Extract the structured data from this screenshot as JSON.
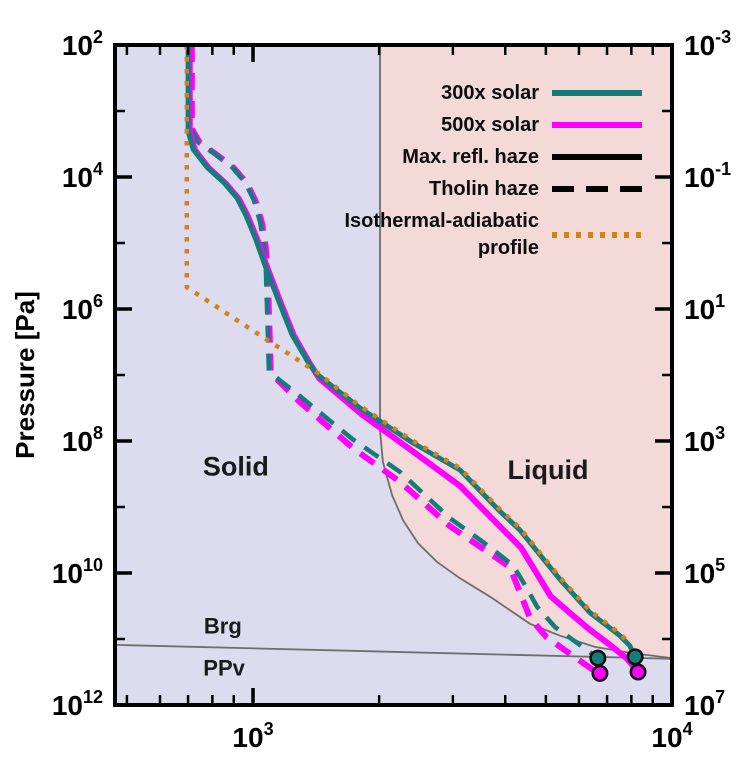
{
  "chart_data": {
    "type": "line",
    "title": "",
    "xlabel": "",
    "ylabel": "Pressure [Pa]",
    "tick_base": "10",
    "x_axis": {
      "scale": "log",
      "range": [
        2.6706,
        4.0
      ],
      "major_ticks": [
        {
          "log": 3.0,
          "exp": "3"
        },
        {
          "log": 4.0,
          "exp": "4"
        }
      ],
      "minor_ticks": [
        2.699,
        2.778,
        2.845,
        2.903,
        2.954,
        3.301,
        3.477,
        3.602,
        3.699,
        3.778,
        3.845,
        3.903,
        3.954
      ]
    },
    "y_axis_left": {
      "scale": "log",
      "range": [
        2.0,
        12.0
      ],
      "major_ticks": [
        {
          "log": 2.0,
          "exp": "2"
        },
        {
          "log": 4.0,
          "exp": "4"
        },
        {
          "log": 6.0,
          "exp": "6"
        },
        {
          "log": 8.0,
          "exp": "8"
        },
        {
          "log": 10.0,
          "exp": "10"
        },
        {
          "log": 12.0,
          "exp": "12"
        }
      ],
      "minor_ticks": [
        3.0,
        5.0,
        7.0,
        9.0,
        11.0
      ]
    },
    "y_axis_right": {
      "scale": "log",
      "major_ticks": [
        {
          "log": 2.0,
          "exp": "-3"
        },
        {
          "log": 4.0,
          "exp": "-1"
        },
        {
          "log": 6.0,
          "exp": "1"
        },
        {
          "log": 8.0,
          "exp": "3"
        },
        {
          "log": 10.0,
          "exp": "5"
        },
        {
          "log": 12.0,
          "exp": "7"
        }
      ],
      "minor_ticks": [
        3.0,
        5.0,
        7.0,
        9.0,
        11.0
      ]
    },
    "regions": {
      "solid_fill": "#dddcef",
      "liquid_fill": "#f3d9d7",
      "boundary_color": "#6e6e6e"
    },
    "boundaries": {
      "melting_curve": [
        [
          3.303,
          2.0
        ],
        [
          3.303,
          7.83
        ],
        [
          3.31,
          8.32
        ],
        [
          3.332,
          8.82
        ],
        [
          3.358,
          9.2
        ],
        [
          3.394,
          9.55
        ],
        [
          3.439,
          9.83
        ],
        [
          3.494,
          10.08
        ],
        [
          3.566,
          10.36
        ],
        [
          3.661,
          10.77
        ],
        [
          3.733,
          10.95
        ],
        [
          3.816,
          11.12
        ],
        [
          3.9,
          11.21
        ],
        [
          4.0,
          11.29
        ]
      ],
      "brg_ppv_line": [
        [
          2.6706,
          11.09
        ],
        [
          4.0,
          11.3
        ]
      ]
    },
    "series": [
      {
        "name": "500x solar, Tholin haze",
        "key": "curve-500x-tholin-haze",
        "color": "#ff00ff",
        "width": 6,
        "dash": [
          17,
          11
        ],
        "points": [
          [
            2.854,
            2.0
          ],
          [
            2.854,
            3.27
          ],
          [
            2.873,
            3.48
          ],
          [
            2.913,
            3.66
          ],
          [
            2.954,
            3.86
          ],
          [
            2.985,
            4.09
          ],
          [
            3.006,
            4.36
          ],
          [
            3.021,
            4.69
          ],
          [
            3.03,
            5.04
          ],
          [
            3.035,
            5.46
          ],
          [
            3.037,
            5.87
          ],
          [
            3.04,
            6.48
          ],
          [
            3.042,
            6.97
          ],
          [
            3.112,
            7.41
          ],
          [
            3.239,
            8.11
          ],
          [
            3.351,
            8.62
          ],
          [
            3.47,
            9.29
          ],
          [
            3.613,
            9.91
          ],
          [
            3.661,
            10.68
          ],
          [
            3.7,
            10.97
          ],
          [
            3.76,
            11.24
          ],
          [
            3.812,
            11.47
          ],
          [
            3.828,
            11.52
          ]
        ]
      },
      {
        "name": "300x solar, Tholin haze",
        "key": "curve-300x-tholin-haze",
        "color": "#147d7b",
        "width": 4.6,
        "dash": [
          17,
          11
        ],
        "points": [
          [
            2.85,
            2.0
          ],
          [
            2.85,
            3.26
          ],
          [
            2.869,
            3.47
          ],
          [
            2.909,
            3.65
          ],
          [
            2.95,
            3.85
          ],
          [
            2.981,
            4.08
          ],
          [
            3.002,
            4.35
          ],
          [
            3.017,
            4.68
          ],
          [
            3.026,
            5.03
          ],
          [
            3.031,
            5.45
          ],
          [
            3.033,
            5.86
          ],
          [
            3.036,
            6.47
          ],
          [
            3.038,
            6.95
          ],
          [
            3.112,
            7.32
          ],
          [
            3.239,
            7.98
          ],
          [
            3.351,
            8.47
          ],
          [
            3.47,
            9.17
          ],
          [
            3.549,
            9.53
          ],
          [
            3.62,
            9.88
          ],
          [
            3.649,
            10.18
          ],
          [
            3.678,
            10.51
          ],
          [
            3.721,
            10.82
          ],
          [
            3.78,
            11.09
          ],
          [
            3.823,
            11.29
          ]
        ]
      },
      {
        "name": "500x solar, Max. refl. haze",
        "key": "curve-500x-max-refl-haze",
        "color": "#ff00ff",
        "width": 6,
        "dash": null,
        "points": [
          [
            2.849,
            2.0
          ],
          [
            2.849,
            3.31
          ],
          [
            2.861,
            3.59
          ],
          [
            2.894,
            3.86
          ],
          [
            2.935,
            4.1
          ],
          [
            2.966,
            4.33
          ],
          [
            2.987,
            4.59
          ],
          [
            3.011,
            4.96
          ],
          [
            3.035,
            5.39
          ],
          [
            3.064,
            5.87
          ],
          [
            3.097,
            6.4
          ],
          [
            3.135,
            6.82
          ],
          [
            3.158,
            7.05
          ],
          [
            3.26,
            7.6
          ],
          [
            3.382,
            8.16
          ],
          [
            3.494,
            8.68
          ],
          [
            3.59,
            9.3
          ],
          [
            3.64,
            9.62
          ],
          [
            3.71,
            10.35
          ],
          [
            3.757,
            10.61
          ],
          [
            3.804,
            10.86
          ],
          [
            3.852,
            11.09
          ],
          [
            3.893,
            11.3
          ],
          [
            3.919,
            11.5
          ]
        ]
      },
      {
        "name": "300x solar, Max. refl. haze",
        "key": "curve-300x-max-refl-haze",
        "color": "#147d7b",
        "width": 5,
        "dash": null,
        "points": [
          [
            2.845,
            2.0
          ],
          [
            2.845,
            3.3
          ],
          [
            2.857,
            3.58
          ],
          [
            2.89,
            3.85
          ],
          [
            2.931,
            4.09
          ],
          [
            2.962,
            4.32
          ],
          [
            2.983,
            4.58
          ],
          [
            3.007,
            4.95
          ],
          [
            3.031,
            5.38
          ],
          [
            3.06,
            5.86
          ],
          [
            3.093,
            6.39
          ],
          [
            3.131,
            6.8
          ],
          [
            3.155,
            7.0
          ],
          [
            3.255,
            7.5
          ],
          [
            3.382,
            8.03
          ],
          [
            3.494,
            8.44
          ],
          [
            3.59,
            9.07
          ],
          [
            3.637,
            9.35
          ],
          [
            3.733,
            10.1
          ],
          [
            3.804,
            10.6
          ],
          [
            3.876,
            10.95
          ],
          [
            3.899,
            11.1
          ],
          [
            3.912,
            11.27
          ]
        ]
      },
      {
        "name": "Isothermal-adiabatic profile",
        "key": "curve-isothermal-adiabatic",
        "color": "#d28219",
        "width": 4.5,
        "dash": [
          4.5,
          7.5
        ],
        "points": [
          [
            2.842,
            2.0
          ],
          [
            2.842,
            5.67
          ],
          [
            2.969,
            6.2
          ],
          [
            3.155,
            6.97
          ],
          [
            3.255,
            7.47
          ],
          [
            3.382,
            8.0
          ],
          [
            3.494,
            8.41
          ],
          [
            3.59,
            9.04
          ],
          [
            3.637,
            9.32
          ],
          [
            3.733,
            10.07
          ],
          [
            3.804,
            10.57
          ],
          [
            3.876,
            10.92
          ],
          [
            3.899,
            11.07
          ]
        ]
      }
    ],
    "markers": [
      {
        "logT": 3.823,
        "logP": 11.29,
        "color": "#147d7b"
      },
      {
        "logT": 3.828,
        "logP": 11.52,
        "color": "#ff00ff"
      },
      {
        "logT": 3.912,
        "logP": 11.27,
        "color": "#147d7b"
      },
      {
        "logT": 3.919,
        "logP": 11.5,
        "color": "#ff00ff"
      }
    ],
    "annotations": [
      {
        "text": "Solid",
        "logT": 2.959,
        "logP": 8.39,
        "class": "regionlab",
        "name": "solid-region-label"
      },
      {
        "text": "Liquid",
        "logT": 3.704,
        "logP": 8.44,
        "class": "regionlab",
        "name": "liquid-region-label"
      },
      {
        "text": "Brg",
        "logT": 2.928,
        "logP": 10.8,
        "class": "minerallab",
        "name": "brg-label"
      },
      {
        "text": "PPv",
        "logT": 2.931,
        "logP": 11.44,
        "class": "minerallab",
        "name": "ppv-label"
      }
    ]
  },
  "legend": {
    "entries": [
      {
        "label": "300x solar",
        "style": "solid",
        "color": "#147d7b"
      },
      {
        "label": "500x solar",
        "style": "solid",
        "color": "#ff00ff"
      },
      {
        "label": "Max. refl. haze",
        "style": "solid",
        "color": "#000000"
      },
      {
        "label": "Tholin haze",
        "style": "dashed",
        "color": "#000000"
      },
      {
        "label_line1": "Isothermal-adiabatic",
        "label_line2": "profile",
        "style": "dotted",
        "color": "#d28219"
      }
    ]
  }
}
